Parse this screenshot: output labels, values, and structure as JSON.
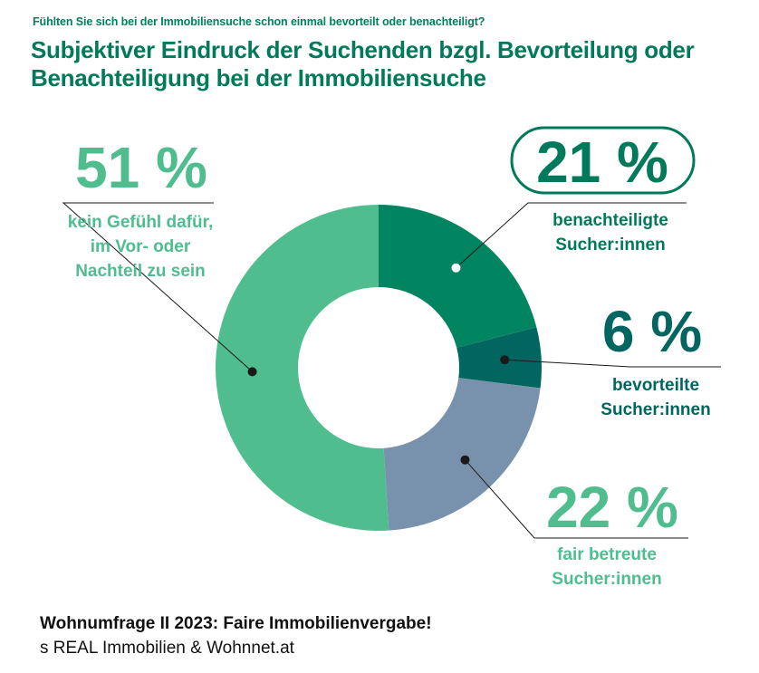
{
  "question": "Fühlten Sie sich bei der Immobiliensuche schon einmal bevorteilt oder benachteiligt?",
  "title": "Subjektiver Eindruck der Suchenden bzgl. Bevorteilung oder Benachteiligung bei der Immobiliensuche",
  "footer": {
    "line1": "Wohnumfrage II 2023: Faire Immobilienvergabe!",
    "line2": "s REAL Immobilien & Wohnnet.at"
  },
  "colors": {
    "benachteiligt": "#008560",
    "bevorteilt": "#00665f",
    "fair": "#7892ad",
    "neutral": "#50bd8f"
  },
  "chart_data": {
    "type": "pie",
    "variant": "donut",
    "unit": "%",
    "slices": [
      {
        "key": "benachteiligt",
        "value": 21,
        "pct_label": "21 %",
        "label_lines": [
          "benachteiligte",
          "Sucher:innen"
        ]
      },
      {
        "key": "bevorteilt",
        "value": 6,
        "pct_label": "6 %",
        "label_lines": [
          "bevorteilte",
          "Sucher:innen"
        ]
      },
      {
        "key": "fair",
        "value": 22,
        "pct_label": "22 %",
        "label_lines": [
          "fair betreute",
          "Sucher:innen"
        ]
      },
      {
        "key": "neutral",
        "value": 51,
        "pct_label": "51 %",
        "label_lines": [
          "kein Gefühl dafür,",
          "im Vor- oder",
          "Nachteil zu sein"
        ]
      }
    ]
  }
}
